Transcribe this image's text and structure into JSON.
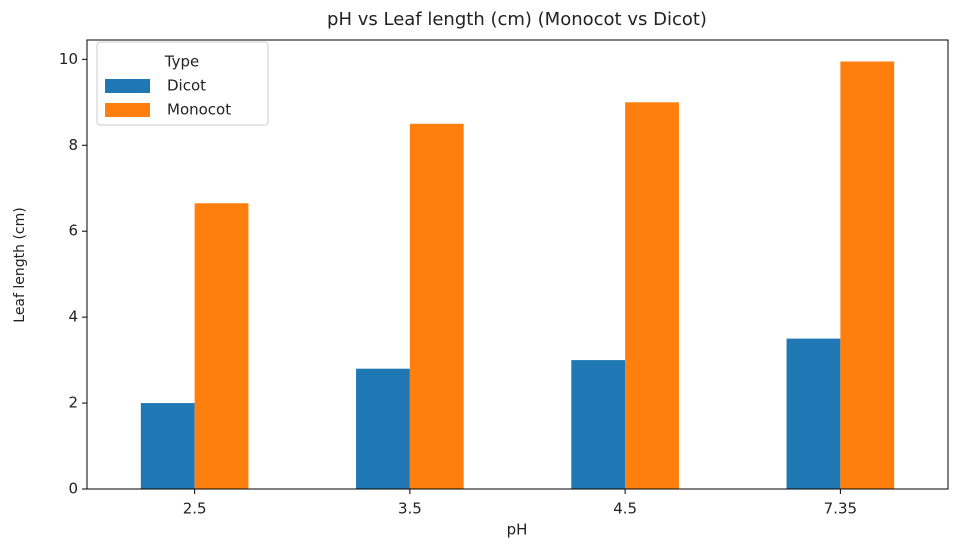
{
  "chart_data": {
    "type": "bar",
    "title": "pH vs Leaf length (cm) (Monocot vs Dicot)",
    "x_label": "pH",
    "y_label": "Leaf length (cm)",
    "categories": [
      "2.5",
      "3.5",
      "4.5",
      "7.35"
    ],
    "series": [
      {
        "name": "Dicot",
        "color": "#1f77b4",
        "values": [
          2.0,
          2.8,
          3.0,
          3.5
        ]
      },
      {
        "name": "Monocot",
        "color": "#ff7f0e",
        "values": [
          6.65,
          8.5,
          9.0,
          9.95
        ]
      }
    ],
    "legend_title": "Type",
    "legend": "upper left",
    "ylim": [
      0,
      10.45
    ],
    "yticks": [
      0,
      2,
      4,
      6,
      8,
      10
    ],
    "grid": false
  }
}
